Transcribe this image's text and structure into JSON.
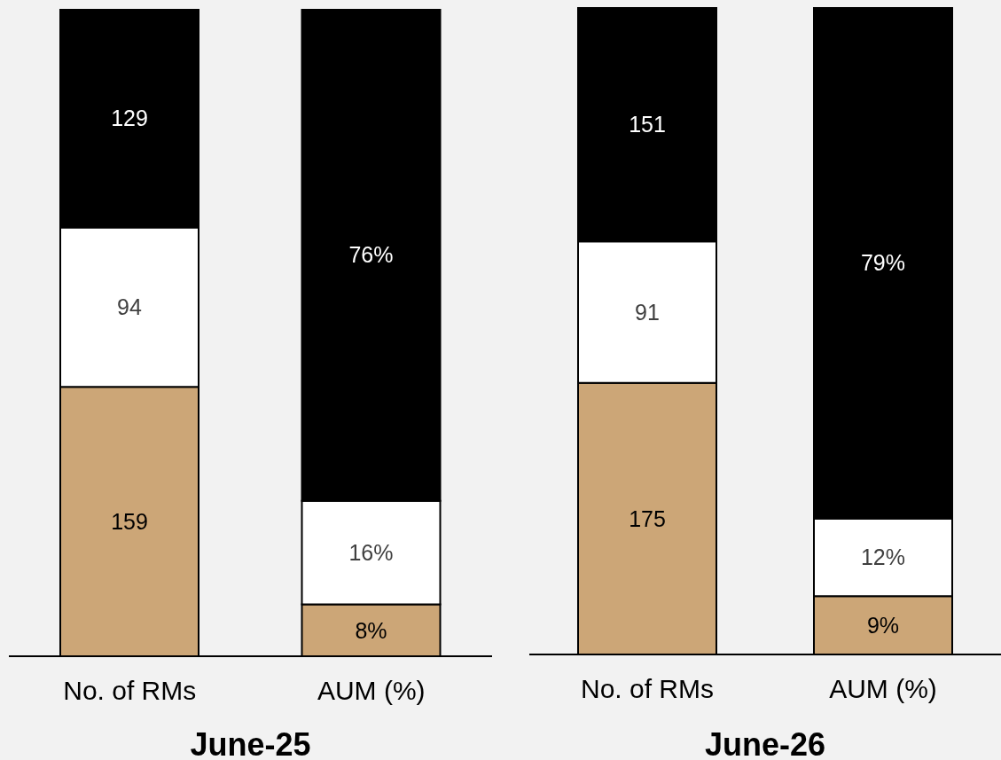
{
  "chart_data": [
    {
      "type": "bar",
      "xlabel": "June-25",
      "categories": [
        "No. of RMs",
        "AUM (%)"
      ],
      "stacked": true,
      "series": [
        {
          "color": "#cca677",
          "values": [
            159,
            null
          ],
          "value_labels": [
            "159",
            null
          ]
        },
        {
          "color": "#ffffff",
          "values": [
            94,
            null
          ],
          "value_labels": [
            "94",
            null
          ]
        },
        {
          "color": "#000000",
          "values": [
            129,
            null
          ],
          "value_labels": [
            "129",
            null
          ]
        },
        {
          "color": "#cca677",
          "axis": "y2",
          "values": [
            null,
            8
          ],
          "value_labels": [
            null,
            "8%"
          ]
        },
        {
          "color": "#ffffff",
          "axis": "y2",
          "values": [
            null,
            16
          ],
          "value_labels": [
            null,
            "16%"
          ]
        },
        {
          "color": "#000000",
          "axis": "y2",
          "values": [
            null,
            76
          ],
          "value_labels": [
            null,
            "76%"
          ]
        }
      ]
    },
    {
      "type": "bar",
      "xlabel": "June-26",
      "categories": [
        "No. of RMs",
        "AUM (%)"
      ],
      "stacked": true,
      "series": [
        {
          "color": "#cca677",
          "values": [
            175,
            null
          ],
          "value_labels": [
            "175",
            null
          ]
        },
        {
          "color": "#ffffff",
          "values": [
            91,
            null
          ],
          "value_labels": [
            "91",
            null
          ]
        },
        {
          "color": "#000000",
          "values": [
            151,
            null
          ],
          "value_labels": [
            "151",
            null
          ]
        },
        {
          "color": "#cca677",
          "axis": "y2",
          "values": [
            null,
            9
          ],
          "value_labels": [
            null,
            "9%"
          ]
        },
        {
          "color": "#ffffff",
          "axis": "y2",
          "values": [
            null,
            12
          ],
          "value_labels": [
            null,
            "12%"
          ]
        },
        {
          "color": "#000000",
          "axis": "y2",
          "values": [
            null,
            79
          ],
          "value_labels": [
            null,
            "79%"
          ]
        }
      ]
    }
  ]
}
